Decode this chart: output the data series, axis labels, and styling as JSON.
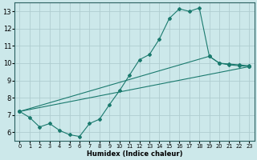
{
  "xlabel": "Humidex (Indice chaleur)",
  "bg_color": "#cce8ea",
  "grid_color": "#b0cdd0",
  "line_color": "#1a7a6e",
  "xlim": [
    -0.5,
    23.5
  ],
  "ylim": [
    5.5,
    13.5
  ],
  "xticks": [
    0,
    1,
    2,
    3,
    4,
    5,
    6,
    7,
    8,
    9,
    10,
    11,
    12,
    13,
    14,
    15,
    16,
    17,
    18,
    19,
    20,
    21,
    22,
    23
  ],
  "yticks": [
    6,
    7,
    8,
    9,
    10,
    11,
    12,
    13
  ],
  "series": [
    {
      "x": [
        0,
        1,
        2,
        3,
        4,
        5,
        6,
        7,
        8,
        9,
        10,
        11,
        12,
        13,
        14,
        15,
        16,
        17,
        18,
        19,
        20,
        21,
        22,
        23
      ],
      "y": [
        7.2,
        6.85,
        6.3,
        6.5,
        6.1,
        5.85,
        5.75,
        6.5,
        6.75,
        7.6,
        8.4,
        9.3,
        10.2,
        10.5,
        11.4,
        12.6,
        13.15,
        13.0,
        13.2,
        10.4,
        10.0,
        9.9,
        9.85,
        9.8
      ]
    },
    {
      "x": [
        0,
        23
      ],
      "y": [
        7.2,
        9.8
      ]
    },
    {
      "x": [
        0,
        19,
        20,
        21,
        22,
        23
      ],
      "y": [
        7.2,
        10.4,
        10.0,
        9.95,
        9.9,
        9.85
      ]
    }
  ]
}
